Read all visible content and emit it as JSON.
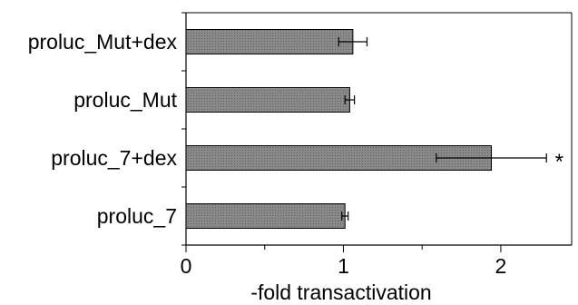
{
  "chart_data": {
    "type": "bar",
    "orientation": "horizontal",
    "categories": [
      "proluc_Mut+dex",
      "proluc_Mut",
      "proluc_7+dex",
      "proluc_7"
    ],
    "values": [
      1.06,
      1.04,
      1.94,
      1.01
    ],
    "errors": [
      0.09,
      0.03,
      0.35,
      0.02
    ],
    "annotations": [
      "",
      "",
      "*",
      ""
    ],
    "xlabel": "-fold transactivation",
    "ylabel": "",
    "xlim": [
      0,
      2.45
    ],
    "xticks": [
      0,
      1,
      2
    ],
    "xtick_labels": [
      "0",
      "1",
      "2"
    ],
    "grid": false,
    "bar_color": "#7f7f7f",
    "bar_edge_color": "#000000"
  }
}
